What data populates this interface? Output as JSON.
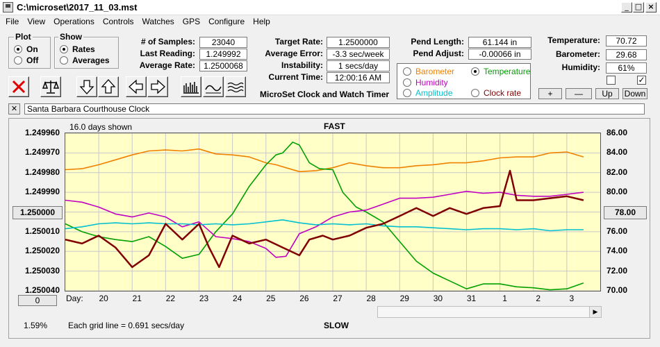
{
  "window": {
    "title": "C:\\microset\\2017_11_03.mst"
  },
  "menu": [
    "File",
    "View",
    "Operations",
    "Controls",
    "Watches",
    "GPS",
    "Configure",
    "Help"
  ],
  "plot_group": {
    "label": "Plot",
    "options": [
      {
        "label": "On",
        "selected": true
      },
      {
        "label": "Off",
        "selected": false
      }
    ]
  },
  "show_group": {
    "label": "Show",
    "options": [
      {
        "label": "Rates",
        "selected": true
      },
      {
        "label": "Averages",
        "selected": false
      }
    ]
  },
  "stats": {
    "samples_label": "# of Samples:",
    "samples_value": "23040",
    "last_reading_label": "Last Reading:",
    "last_reading_value": "1.249992",
    "average_rate_label": "Average Rate:",
    "average_rate_value": "1.2500068"
  },
  "targets": {
    "target_rate_label": "Target Rate:",
    "target_rate_value": "1.2500000",
    "average_error_label": "Average Error:",
    "average_error_value": "-3.3 sec/week",
    "instability_label": "Instability:",
    "instability_value": "1 secs/day",
    "current_time_label": "Current Time:",
    "current_time_value": "12:00:16 AM"
  },
  "app_caption": "MicroSet Clock and Watch Timer",
  "pendulum": {
    "length_label": "Pend Length:",
    "length_value": "61.144 in",
    "adjust_label": "Pend Adjust:",
    "adjust_value": "-0.00066 in"
  },
  "sensor_options": {
    "barometer": {
      "label": "Barometer",
      "color": "#f08000",
      "selected": false
    },
    "temperature": {
      "label": "Temperature",
      "color": "#00a000",
      "selected": true
    },
    "humidity": {
      "label": "Humidity",
      "color": "#c000c0",
      "selected": false
    },
    "amplitude": {
      "label": "Amplitude",
      "color": "#00c0d0",
      "selected": false
    },
    "clock_rate": {
      "label": "Clock rate",
      "color": "#800000",
      "selected": false
    }
  },
  "environment": {
    "temperature_label": "Temperature:",
    "temperature_value": "70.72",
    "barometer_label": "Barometer:",
    "barometer_value": "29.68",
    "humidity_label": "Humidity:",
    "humidity_value": "61%",
    "check1": false,
    "check2": true,
    "plus_label": "+",
    "minus_label": "—",
    "up_label": "Up",
    "down_label": "Down"
  },
  "toolbar": {
    "delete_icon": "red-x-icon",
    "scale_icon": "balance-scale-icon",
    "down_icon": "arrow-down-icon",
    "up_icon": "arrow-up-icon",
    "left_icon": "arrow-left-icon",
    "right_icon": "arrow-right-icon",
    "bars_icon": "bar-graph-icon",
    "wave_icon": "wave-icon",
    "waves_icon": "multi-wave-icon"
  },
  "clock_name": {
    "close_label": "✕",
    "value": "Santa Barbara Courthouse Clock"
  },
  "chart_header": {
    "days_shown": "16.0 days shown",
    "top_label": "FAST",
    "bottom_label": "SLOW"
  },
  "center_button": "1.250000",
  "right_button": "78.00",
  "zero_button": "0",
  "bottom_left": "1.59%",
  "grid_note": "Each grid line = 0.691 secs/day",
  "day_label": "Day:",
  "chart_data": {
    "type": "line",
    "left_axis": {
      "ticks": [
        "1.249960",
        "1.249970",
        "1.249980",
        "1.249990",
        "1.250000",
        "1.250010",
        "1.250020",
        "1.250030",
        "1.250040"
      ],
      "ylim": [
        1.25004,
        1.24996
      ]
    },
    "right_axis": {
      "ticks": [
        "86.00",
        "84.00",
        "82.00",
        "80.00",
        "78.00",
        "76.00",
        "74.00",
        "72.00",
        "70.00"
      ],
      "ylim": [
        70,
        86
      ]
    },
    "x_ticks": [
      "20",
      "21",
      "22",
      "23",
      "24",
      "25",
      "26",
      "27",
      "28",
      "29",
      "30",
      "31",
      "1",
      "2",
      "3"
    ],
    "x_tick_days": [
      20,
      21,
      22,
      23,
      24,
      25,
      26,
      27,
      28,
      29,
      30,
      31,
      32,
      33,
      34
    ],
    "xlim": [
      19,
      35
    ],
    "grid": true,
    "series": [
      {
        "name": "Barometer",
        "color": "#f08000",
        "x": [
          19,
          19.5,
          20,
          20.5,
          21,
          21.5,
          22,
          22.5,
          23,
          23.5,
          24,
          24.5,
          25,
          25.3,
          25.6,
          26,
          26.5,
          27,
          27.5,
          28,
          28.5,
          29,
          29.5,
          30,
          30.5,
          31,
          31.5,
          32,
          32.5,
          33,
          33.5,
          34,
          34.5
        ],
        "y": [
          82.3,
          82.4,
          82.8,
          83.3,
          83.8,
          84.2,
          84.3,
          84.2,
          84.4,
          83.9,
          83.8,
          83.6,
          83.0,
          82.8,
          82.5,
          82.1,
          82.2,
          82.5,
          83.0,
          82.7,
          82.5,
          82.5,
          82.7,
          82.8,
          83.0,
          83.0,
          83.2,
          83.5,
          83.6,
          83.6,
          84.0,
          84.1,
          83.6
        ]
      },
      {
        "name": "Temperature",
        "color": "#00a000",
        "x": [
          19,
          19.5,
          20,
          20.5,
          21,
          21.5,
          22,
          22.5,
          23,
          23.5,
          24,
          24.5,
          25,
          25.3,
          25.5,
          25.8,
          26,
          26.3,
          26.6,
          27,
          27.3,
          27.7,
          28,
          28.5,
          29,
          29.5,
          30,
          30.5,
          31,
          31.5,
          32,
          32.5,
          33,
          33.5,
          34,
          34.5
        ],
        "y": [
          76.8,
          76.0,
          75.5,
          75.2,
          75.0,
          75.5,
          74.5,
          73.3,
          73.7,
          76.0,
          77.8,
          80.6,
          82.8,
          83.8,
          84.0,
          85.1,
          84.8,
          83.0,
          82.4,
          82.3,
          80.0,
          78.5,
          78.0,
          77.0,
          75.0,
          73.0,
          71.8,
          71.0,
          70.2,
          70.7,
          70.7,
          70.4,
          70.3,
          70.1,
          70.2,
          70.8
        ]
      },
      {
        "name": "Humidity",
        "color": "#c000c0",
        "x": [
          19,
          19.5,
          20,
          20.5,
          21,
          21.5,
          22,
          22.5,
          23,
          23.5,
          24,
          24.5,
          25,
          25.3,
          25.6,
          26,
          26.5,
          27,
          27.5,
          28,
          28.5,
          29,
          29.5,
          30,
          30.5,
          31,
          31.5,
          32,
          32.5,
          33,
          33.5,
          34,
          34.5
        ],
        "y": [
          79.2,
          79.0,
          78.5,
          77.8,
          77.5,
          77.9,
          77.5,
          76.5,
          77.0,
          75.5,
          75.3,
          75.0,
          74.3,
          73.4,
          73.5,
          75.8,
          76.5,
          77.5,
          78.0,
          78.2,
          78.8,
          79.4,
          79.4,
          79.5,
          79.8,
          80.1,
          79.9,
          80.0,
          79.7,
          79.6,
          79.6,
          79.8,
          80.0
        ]
      },
      {
        "name": "Amplitude",
        "color": "#00c0d0",
        "x": [
          19,
          19.5,
          20,
          20.5,
          21,
          21.5,
          22,
          22.5,
          23,
          23.5,
          24,
          24.5,
          25,
          25.5,
          26,
          26.5,
          27,
          27.5,
          28,
          28.5,
          29,
          29.5,
          30,
          30.5,
          31,
          31.5,
          32,
          32.5,
          33,
          33.5,
          34,
          34.5
        ],
        "y": [
          76.3,
          76.5,
          76.8,
          76.9,
          76.8,
          76.9,
          76.8,
          76.8,
          76.7,
          76.8,
          76.7,
          76.8,
          77.0,
          77.2,
          76.9,
          76.7,
          76.8,
          76.7,
          76.8,
          76.6,
          76.5,
          76.5,
          76.4,
          76.3,
          76.2,
          76.3,
          76.3,
          76.2,
          76.3,
          76.1,
          76.2,
          76.2
        ]
      },
      {
        "name": "Clock rate",
        "color": "#800000",
        "x": [
          19,
          19.5,
          20,
          20.5,
          21,
          21.5,
          22,
          22.5,
          23,
          23.3,
          23.6,
          24,
          24.5,
          25,
          25.5,
          26,
          26.3,
          26.7,
          27,
          27.5,
          28,
          28.5,
          29,
          29.5,
          30,
          30.5,
          31,
          31.5,
          32,
          32.3,
          32.5,
          33,
          33.5,
          34,
          34.5
        ],
        "y": [
          1.250014,
          1.250016,
          1.250012,
          1.250018,
          1.250028,
          1.250022,
          1.250006,
          1.250014,
          1.250006,
          1.250018,
          1.250028,
          1.250012,
          1.250016,
          1.250014,
          1.250018,
          1.250022,
          1.250014,
          1.250012,
          1.250014,
          1.250012,
          1.250008,
          1.250006,
          1.250002,
          1.249998,
          1.250002,
          1.249998,
          1.250001,
          1.249998,
          1.249997,
          1.249979,
          1.249994,
          1.249994,
          1.249993,
          1.249992,
          1.249994
        ]
      }
    ]
  }
}
